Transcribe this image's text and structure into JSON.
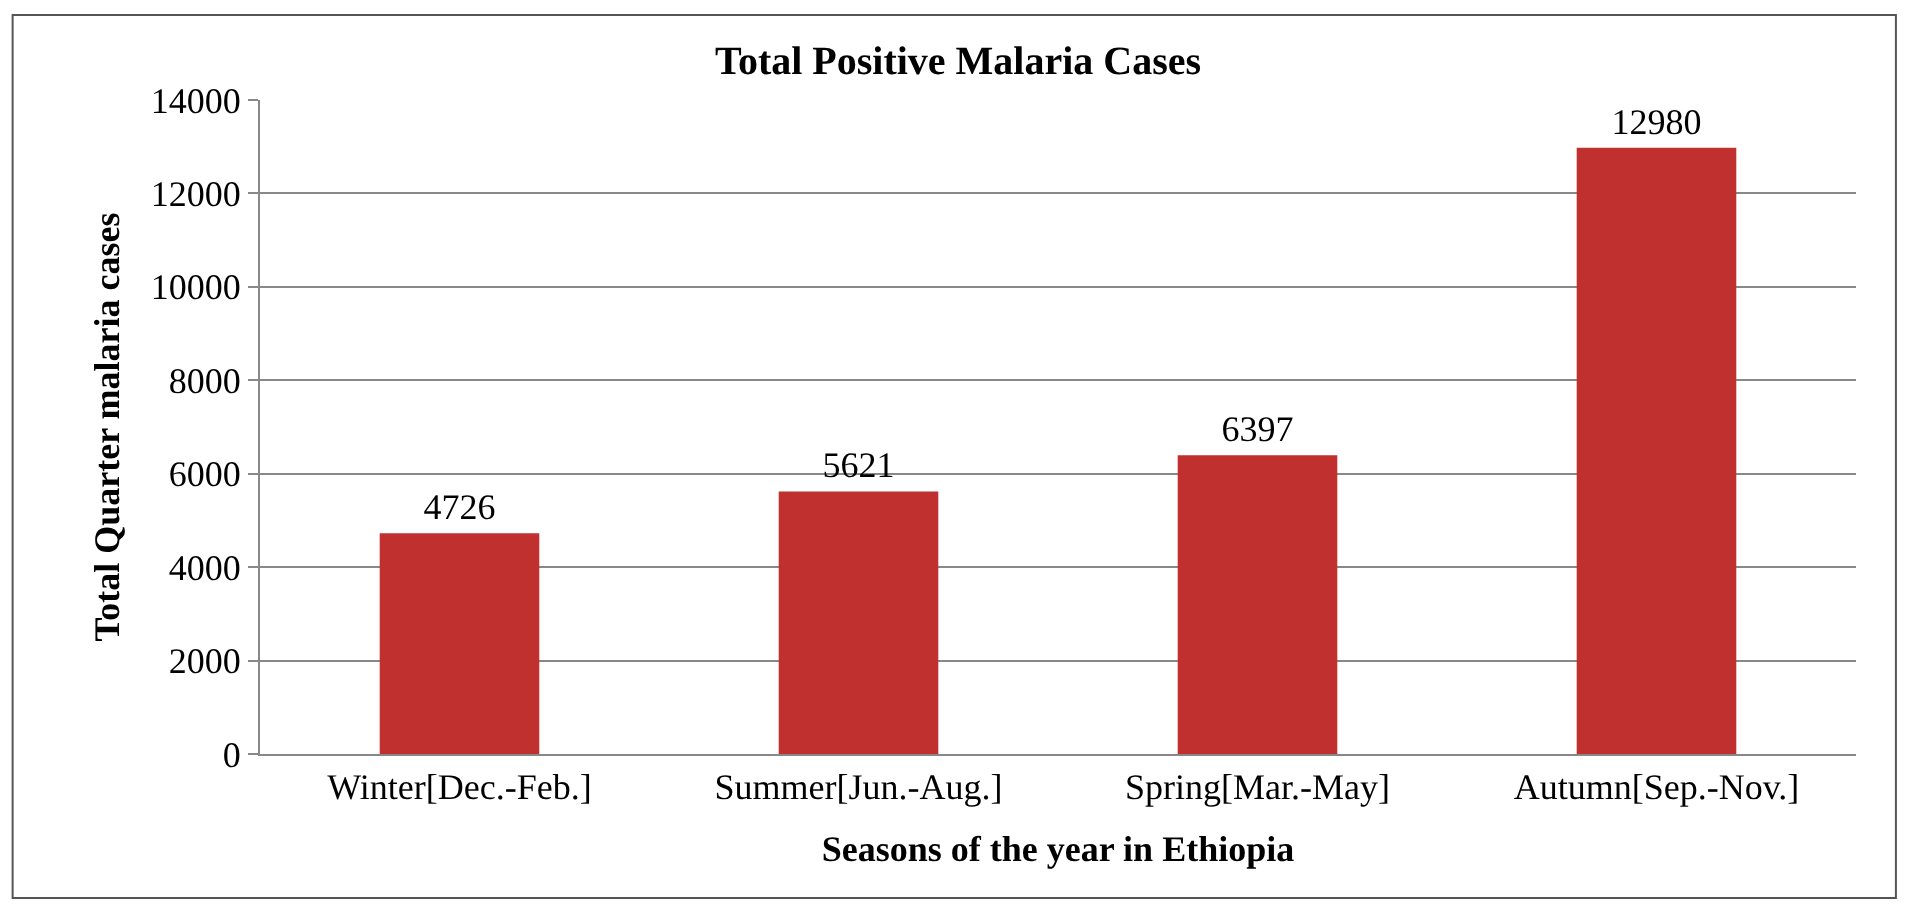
{
  "chart_data": {
    "type": "bar",
    "title": "Total Positive Malaria Cases",
    "xlabel": "Seasons of the year in Ethiopia",
    "ylabel": "Total Quarter malaria cases",
    "categories": [
      "Winter[Dec.-Feb.]",
      "Summer[Jun.-Aug.]",
      "Spring[Mar.-May]",
      "Autumn[Sep.-Nov.]"
    ],
    "values": [
      4726,
      5621,
      6397,
      12980
    ],
    "color": "#c0302f",
    "ylim": [
      0,
      14000
    ],
    "yticks": [
      0,
      2000,
      4000,
      6000,
      8000,
      10000,
      12000,
      14000
    ],
    "grid": "y",
    "data_labels": true
  }
}
